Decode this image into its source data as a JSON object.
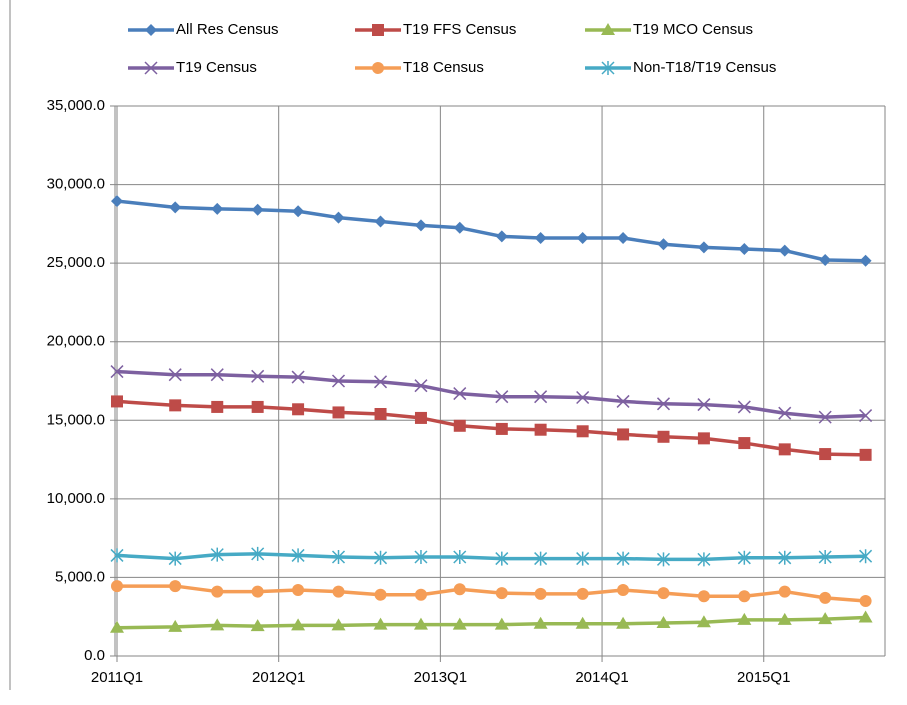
{
  "chart_data": {
    "type": "line",
    "x": [
      2011.0,
      2011.36,
      2011.62,
      2011.87,
      2012.12,
      2012.37,
      2012.63,
      2012.88,
      2013.12,
      2013.38,
      2013.62,
      2013.88,
      2014.13,
      2014.38,
      2014.63,
      2014.88,
      2015.13,
      2015.38,
      2015.63
    ],
    "xlim": [
      2011.0,
      2015.75
    ],
    "xticks": [
      {
        "value": 2011,
        "label": "2011Q1"
      },
      {
        "value": 2012,
        "label": "2012Q1"
      },
      {
        "value": 2013,
        "label": "2013Q1"
      },
      {
        "value": 2014,
        "label": "2014Q1"
      },
      {
        "value": 2015,
        "label": "2015Q1"
      }
    ],
    "ylim": [
      0,
      35000
    ],
    "yticks": [
      {
        "value": 0,
        "label": "0.0"
      },
      {
        "value": 5000,
        "label": "5,000.0"
      },
      {
        "value": 10000,
        "label": "10,000.0"
      },
      {
        "value": 15000,
        "label": "15,000.0"
      },
      {
        "value": 20000,
        "label": "20,000.0"
      },
      {
        "value": 25000,
        "label": "25,000.0"
      },
      {
        "value": 30000,
        "label": "30,000.0"
      },
      {
        "value": 35000,
        "label": "35,000.0"
      }
    ],
    "grid": true,
    "legend": "top",
    "series": [
      {
        "name": "All Res Census",
        "color": "#4a7ebb",
        "marker": "diamond",
        "values": [
          28950,
          28550,
          28450,
          28400,
          28300,
          27900,
          27650,
          27400,
          27250,
          26700,
          26600,
          26600,
          26600,
          26200,
          26000,
          25900,
          25800,
          25200,
          25150
        ]
      },
      {
        "name": "T19 FFS Census",
        "color": "#be4b48",
        "marker": "square",
        "values": [
          16200,
          15950,
          15850,
          15850,
          15700,
          15500,
          15400,
          15150,
          14650,
          14450,
          14400,
          14300,
          14100,
          13950,
          13850,
          13550,
          13150,
          12850,
          12800
        ]
      },
      {
        "name": "T19 MCO Census",
        "color": "#98b954",
        "marker": "triangle",
        "values": [
          1800,
          1850,
          1950,
          1900,
          1950,
          1950,
          2000,
          2000,
          2000,
          2000,
          2050,
          2050,
          2050,
          2100,
          2150,
          2300,
          2300,
          2350,
          2450
        ]
      },
      {
        "name": "T19 Census",
        "color": "#7d60a0",
        "marker": "x",
        "values": [
          18100,
          17900,
          17900,
          17800,
          17750,
          17500,
          17450,
          17200,
          16700,
          16500,
          16500,
          16450,
          16200,
          16050,
          16000,
          15850,
          15450,
          15200,
          15300
        ]
      },
      {
        "name": "T18 Census",
        "color": "#f59d56",
        "marker": "circle",
        "values": [
          4450,
          4450,
          4100,
          4100,
          4200,
          4100,
          3900,
          3900,
          4250,
          4000,
          3950,
          3950,
          4200,
          4000,
          3800,
          3800,
          4100,
          3700,
          3500
        ]
      },
      {
        "name": "Non-T18/T19 Census",
        "color": "#46aac5",
        "marker": "star",
        "values": [
          6400,
          6200,
          6450,
          6500,
          6400,
          6300,
          6250,
          6300,
          6300,
          6200,
          6200,
          6200,
          6200,
          6150,
          6150,
          6250,
          6250,
          6300,
          6350
        ]
      }
    ]
  }
}
